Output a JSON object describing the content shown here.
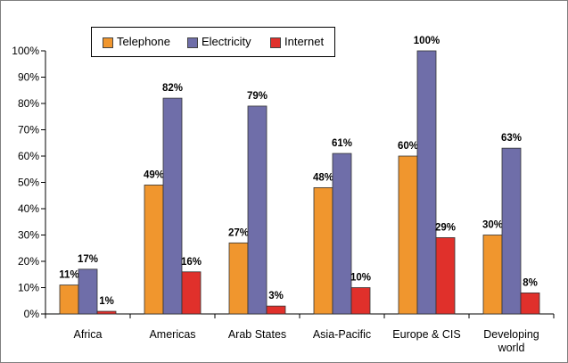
{
  "chart_data": {
    "type": "bar",
    "categories": [
      "Africa",
      "Americas",
      "Arab States",
      "Asia-Pacific",
      "Europe & CIS",
      "Developing world"
    ],
    "category_lines": [
      [
        "Africa"
      ],
      [
        "Americas"
      ],
      [
        "Arab States"
      ],
      [
        "Asia-Pacific"
      ],
      [
        "Europe & CIS"
      ],
      [
        "Developing",
        "world"
      ]
    ],
    "series": [
      {
        "name": "Telephone",
        "color": "#F0962E",
        "values": [
          11,
          49,
          27,
          48,
          60,
          30
        ],
        "labels": [
          "11%",
          "49%",
          "27%",
          "48%",
          "60%",
          "30%"
        ]
      },
      {
        "name": "Electricity",
        "color": "#6F6EA9",
        "values": [
          17,
          82,
          79,
          61,
          100,
          63
        ],
        "labels": [
          "17%",
          "82%",
          "79%",
          "61%",
          "100%",
          "63%"
        ]
      },
      {
        "name": "Internet",
        "color": "#E0302B",
        "values": [
          1,
          16,
          3,
          10,
          29,
          8
        ],
        "labels": [
          "1%",
          "16%",
          "3%",
          "10%",
          "29%",
          "8%"
        ]
      }
    ],
    "y_ticks": [
      "0%",
      "10%",
      "20%",
      "30%",
      "40%",
      "50%",
      "60%",
      "70%",
      "80%",
      "90%",
      "100%"
    ],
    "ylim": [
      0,
      100
    ],
    "xlabel": "",
    "ylabel": "",
    "title": "",
    "grid": false,
    "legend_position": "top-left"
  }
}
